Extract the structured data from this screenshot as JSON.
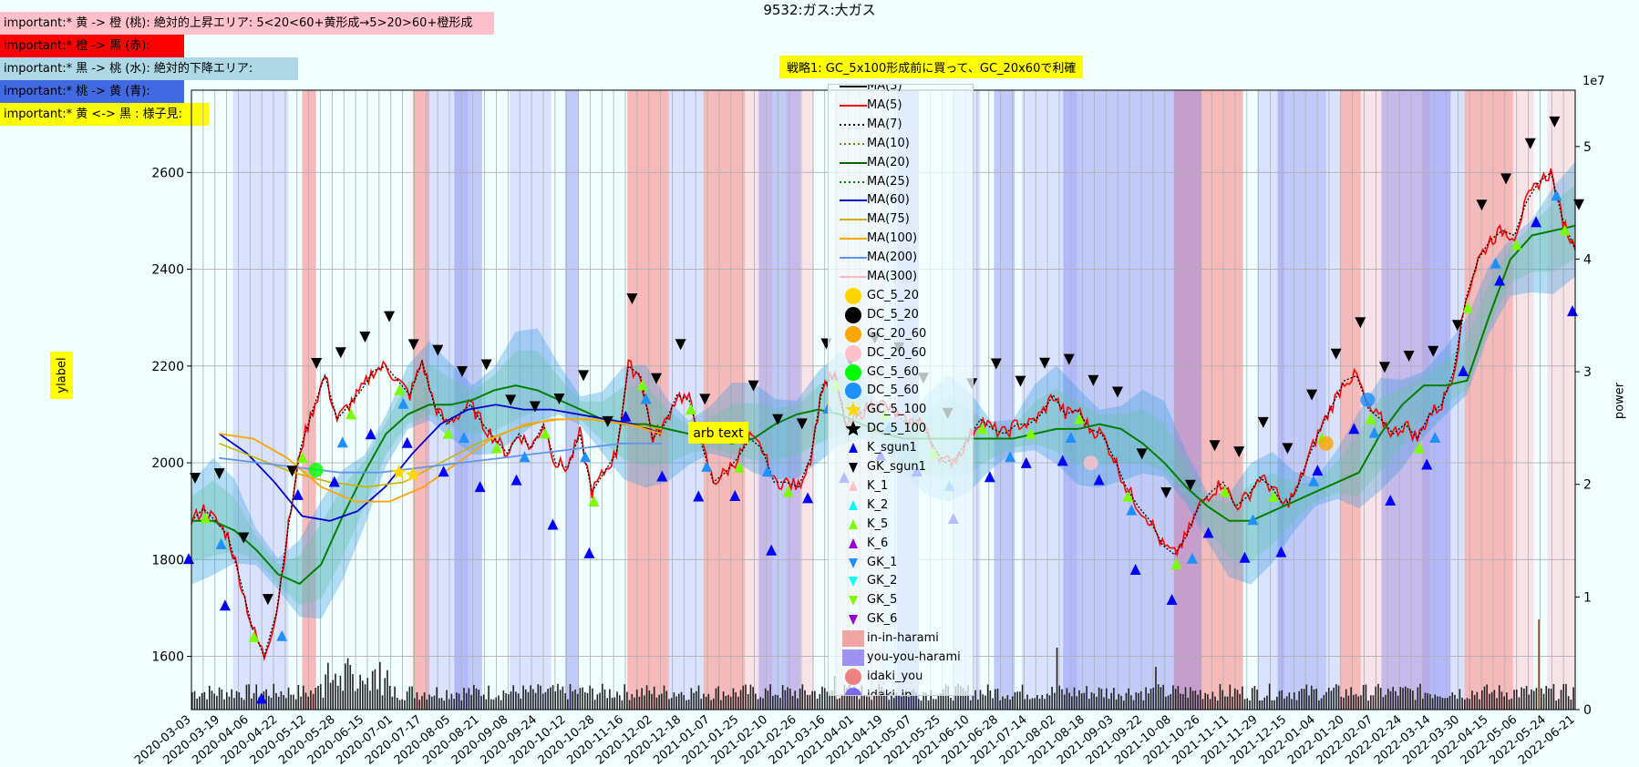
{
  "title": "9532:ガス:大ガス",
  "notes": [
    {
      "text": "important:* 黄 -> 橙 (桃): 絶対的上昇エリア: 5<20<60+黄形成→5>20>60+橙形成",
      "bg": "#FFC0CB"
    },
    {
      "text": "important:* 橙 -> 黒 (赤):",
      "bg": "#FF0000"
    },
    {
      "text": "important:* 黒 -> 桃 (水): 絶対的下降エリア:",
      "bg": "#ADD8E6"
    },
    {
      "text": "important:* 桃 -> 黄 (青):",
      "bg": "#4169E1"
    },
    {
      "text": "important:* 黄 <-> 黒 : 様子見:",
      "bg": "#FFFF00"
    }
  ],
  "strategy_label": "戦略1: GC_5x100形成前に買って、GC_20x60で利確",
  "ylabel": "ylabel",
  "y2label": "power",
  "y2_exponent": "1e7",
  "annotation": "arb text",
  "legend": [
    {
      "label": "MA(3)",
      "kind": "line",
      "color": "#000000",
      "style": "solid"
    },
    {
      "label": "MA(5)",
      "kind": "line",
      "color": "#FF0000",
      "style": "solid"
    },
    {
      "label": "MA(7)",
      "kind": "line",
      "color": "#000000",
      "style": "dotted"
    },
    {
      "label": "MA(10)",
      "kind": "line",
      "color": "#808000",
      "style": "dotted"
    },
    {
      "label": "MA(20)",
      "kind": "line",
      "color": "#006400",
      "style": "solid"
    },
    {
      "label": "MA(25)",
      "kind": "line",
      "color": "#008000",
      "style": "dotted"
    },
    {
      "label": "MA(60)",
      "kind": "line",
      "color": "#0000CD",
      "style": "solid"
    },
    {
      "label": "MA(75)",
      "kind": "line",
      "color": "#C8B400",
      "style": "solid"
    },
    {
      "label": "MA(100)",
      "kind": "line",
      "color": "#FFA500",
      "style": "solid"
    },
    {
      "label": "MA(200)",
      "kind": "line",
      "color": "#6495ED",
      "style": "solid"
    },
    {
      "label": "MA(300)",
      "kind": "line",
      "color": "#FFB6C1",
      "style": "solid"
    },
    {
      "label": "GC_5_20",
      "kind": "circle",
      "color": "#FFD700"
    },
    {
      "label": "DC_5_20",
      "kind": "circle",
      "color": "#000000"
    },
    {
      "label": "GC_20_60",
      "kind": "circle",
      "color": "#FFA500"
    },
    {
      "label": "DC_20_60",
      "kind": "circle",
      "color": "#FFC0CB"
    },
    {
      "label": "GC_5_60",
      "kind": "circle",
      "color": "#00FF00"
    },
    {
      "label": "DC_5_60",
      "kind": "circle",
      "color": "#1E90FF"
    },
    {
      "label": "GC_5_100",
      "kind": "star",
      "color": "#FFD700"
    },
    {
      "label": "DC_5_100",
      "kind": "star",
      "color": "#000000"
    },
    {
      "label": "K_sgun1",
      "kind": "tri-up",
      "color": "#0000FF"
    },
    {
      "label": "GK_sgun1",
      "kind": "tri-down",
      "color": "#000000"
    },
    {
      "label": "K_1",
      "kind": "tri-up",
      "color": "#FFC0CB"
    },
    {
      "label": "K_2",
      "kind": "tri-up",
      "color": "#00FFFF"
    },
    {
      "label": "K_5",
      "kind": "tri-up",
      "color": "#7CFC00"
    },
    {
      "label": "K_6",
      "kind": "tri-up",
      "color": "#9400D3"
    },
    {
      "label": "GK_1",
      "kind": "tri-down",
      "color": "#1E90FF"
    },
    {
      "label": "GK_2",
      "kind": "tri-down",
      "color": "#00FFFF"
    },
    {
      "label": "GK_5",
      "kind": "tri-down",
      "color": "#7CFC00"
    },
    {
      "label": "GK_6",
      "kind": "tri-down",
      "color": "#9400D3"
    },
    {
      "label": "in-in-harami",
      "kind": "rect",
      "color": "#F08080"
    },
    {
      "label": "you-you-harami",
      "kind": "rect",
      "color": "#7B68EE"
    },
    {
      "label": "idaki_you",
      "kind": "circle",
      "color": "#F08080"
    },
    {
      "label": "idaki_in",
      "kind": "circle",
      "color": "#7B68EE"
    }
  ],
  "chart_data": {
    "type": "line",
    "ylim": [
      1490,
      2770
    ],
    "y_ticks": [
      "1600",
      "1800",
      "2000",
      "2200",
      "2400",
      "2600"
    ],
    "y2lim": [
      0,
      5.5
    ],
    "y2_ticks": [
      "0",
      "1",
      "2",
      "3",
      "4",
      "5"
    ],
    "x_range": [
      "2020-03-03",
      "2022-06-21"
    ],
    "x_ticks": [
      "2020-03-03",
      "2020-03-19",
      "2020-04-06",
      "2020-04-22",
      "2020-05-12",
      "2020-05-28",
      "2020-06-15",
      "2020-07-01",
      "2020-07-17",
      "2020-08-05",
      "2020-08-21",
      "2020-09-08",
      "2020-09-24",
      "2020-10-12",
      "2020-10-28",
      "2020-11-16",
      "2020-12-02",
      "2020-12-18",
      "2021-01-07",
      "2021-01-25",
      "2021-02-10",
      "2021-02-26",
      "2021-03-16",
      "2021-04-01",
      "2021-04-19",
      "2021-05-07",
      "2021-05-25",
      "2021-06-10",
      "2021-06-28",
      "2021-07-14",
      "2021-08-02",
      "2021-08-18",
      "2021-09-03",
      "2021-09-22",
      "2021-10-08",
      "2021-10-26",
      "2021-11-11",
      "2021-11-29",
      "2021-12-15",
      "2022-01-04",
      "2022-01-20",
      "2022-02-07",
      "2022-02-24",
      "2022-03-14",
      "2022-03-30",
      "2022-04-15",
      "2022-05-06",
      "2022-05-24",
      "2022-06-21"
    ],
    "grid": true,
    "close": [
      1880,
      1905,
      1880,
      1850,
      1760,
      1660,
      1600,
      1690,
      1870,
      2030,
      2110,
      2180,
      2090,
      2120,
      2150,
      2190,
      2200,
      2170,
      2140,
      2210,
      2120,
      2080,
      2100,
      2120,
      2080,
      2050,
      2020,
      2060,
      2030,
      2080,
      2000,
      1990,
      2060,
      1940,
      1980,
      2020,
      2200,
      2180,
      2050,
      2080,
      2140,
      2130,
      2040,
      1960,
      1980,
      2010,
      2050,
      2030,
      1960,
      1960,
      1950,
      2010,
      2160,
      2180,
      2070,
      2100,
      2120,
      2120,
      2100,
      2080,
      2090,
      2040,
      2000,
      2010,
      2050,
      2090,
      2070,
      2060,
      2080,
      2080,
      2100,
      2140,
      2100,
      2110,
      2070,
      2060,
      2010,
      1950,
      1910,
      1880,
      1830,
      1810,
      1850,
      1910,
      1940,
      1960,
      1910,
      1930,
      1970,
      1950,
      1910,
      1940,
      2010,
      2070,
      2120,
      2170,
      2180,
      2110,
      2090,
      2060,
      2080,
      2050,
      2100,
      2120,
      2190,
      2340,
      2420,
      2460,
      2480,
      2470,
      2540,
      2580,
      2600,
      2500,
      2440
    ],
    "ma_series": [
      {
        "name": "MA(20)",
        "values": [
          1880,
          1880,
          1860,
          1820,
          1770,
          1750,
          1790,
          1890,
          1980,
          2060,
          2100,
          2120,
          2120,
          2130,
          2150,
          2160,
          2150,
          2130,
          2110,
          2090,
          2080,
          2080,
          2070,
          2060,
          2050,
          2040,
          2050,
          2080,
          2100,
          2110,
          2100,
          2080,
          2060,
          2050,
          2050,
          2050,
          2050,
          2050,
          2050,
          2060,
          2070,
          2070,
          2080,
          2070,
          2040,
          2000,
          1950,
          1910,
          1880,
          1880,
          1900,
          1920,
          1940,
          1960,
          1980,
          2060,
          2120,
          2160,
          2160,
          2170,
          2300,
          2420,
          2470,
          2480,
          2490
        ]
      },
      {
        "name": "MA(60)",
        "values": [
          2060,
          2020,
          1960,
          1890,
          1880,
          1900,
          1950,
          2020,
          2080,
          2110,
          2120,
          2110,
          2110,
          2100,
          2090,
          2080,
          2060
        ]
      },
      {
        "name": "MA(75)",
        "values": [
          2040,
          2010,
          1980,
          1960,
          1950,
          1960,
          2000,
          2040,
          2070,
          2090,
          2090,
          2080,
          2070
        ]
      },
      {
        "name": "MA(100)",
        "values": [
          2060,
          2050,
          2010,
          1950,
          1920,
          1920,
          1950,
          2000,
          2050,
          2080,
          2090,
          2090,
          2080,
          2060
        ]
      },
      {
        "name": "MA(200)",
        "values": [
          2010,
          2000,
          1990,
          1980,
          1980,
          1990,
          2000,
          2010,
          2020,
          2030,
          2040,
          2040
        ]
      }
    ],
    "spans_pink": [
      [
        0.4,
        0.42
      ],
      [
        0.43,
        0.45
      ],
      [
        0.465,
        0.5
      ],
      [
        0.845,
        0.895
      ],
      [
        0.955,
        0.97
      ],
      [
        0.98,
        1.0
      ]
    ],
    "spans_red": [
      [
        0.08,
        0.09
      ],
      [
        0.16,
        0.172
      ],
      [
        0.315,
        0.345
      ],
      [
        0.37,
        0.4
      ],
      [
        0.71,
        0.735
      ],
      [
        0.735,
        0.76
      ],
      [
        0.83,
        0.845
      ],
      [
        0.92,
        0.955
      ]
    ],
    "spans_lavender": [
      [
        0.03,
        0.07
      ],
      [
        0.17,
        0.2
      ],
      [
        0.23,
        0.26
      ],
      [
        0.345,
        0.37
      ],
      [
        0.5,
        0.525
      ],
      [
        0.55,
        0.57
      ],
      [
        0.6,
        0.64
      ],
      [
        0.77,
        0.79
      ],
      [
        0.82,
        0.83
      ],
      [
        0.89,
        0.92
      ]
    ],
    "spans_blue": [
      [
        0.19,
        0.21
      ],
      [
        0.27,
        0.28
      ],
      [
        0.41,
        0.44
      ],
      [
        0.51,
        0.525
      ],
      [
        0.58,
        0.595
      ],
      [
        0.63,
        0.66
      ],
      [
        0.66,
        0.73
      ],
      [
        0.785,
        0.82
      ],
      [
        0.86,
        0.91
      ]
    ]
  }
}
